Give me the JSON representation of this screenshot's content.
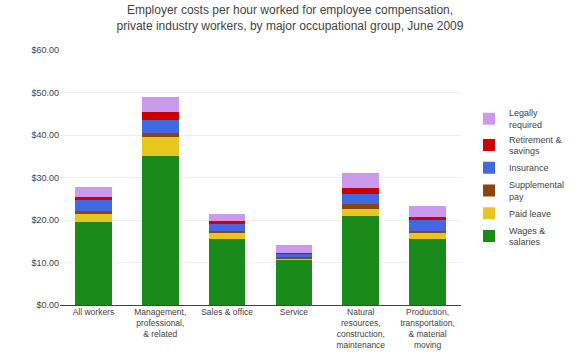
{
  "chart_data": {
    "type": "bar",
    "stacked": true,
    "title": "Employer costs per hour worked for employee compensation,\nprivate industry workers, by major occupational group, June 2009",
    "categories": [
      "All workers",
      "Management,\nprofessional,\n& related",
      "Sales & office",
      "Service",
      "Natural\nresources,\nconstruction,\nmaintenance",
      "Production,\ntransportation,\n& material\nmoving"
    ],
    "series": [
      {
        "name": "Wages &\nsalaries",
        "color": "#1a8a1a",
        "values": [
          19.5,
          35.0,
          15.5,
          10.5,
          21.0,
          15.5
        ]
      },
      {
        "name": "Paid leave",
        "color": "#e8c620",
        "values": [
          1.9,
          4.5,
          1.5,
          0.5,
          1.5,
          1.5
        ]
      },
      {
        "name": "Supplemental\npay",
        "color": "#8b4513",
        "values": [
          0.7,
          1.0,
          0.5,
          0.2,
          1.2,
          0.5
        ]
      },
      {
        "name": "Insurance",
        "color": "#4169e1",
        "values": [
          2.5,
          3.0,
          1.5,
          0.8,
          2.5,
          2.5
        ]
      },
      {
        "name": "Retirement &\nsavings",
        "color": "#cc0000",
        "values": [
          0.8,
          2.0,
          0.7,
          0.3,
          1.3,
          0.8
        ]
      },
      {
        "name": "Legally\nrequired",
        "color": "#cc99ee",
        "values": [
          2.4,
          3.5,
          1.6,
          1.8,
          3.5,
          2.5
        ]
      }
    ],
    "ylim": [
      0,
      60
    ],
    "yticks": [
      {
        "value": 0,
        "label": "$0.00"
      },
      {
        "value": 10,
        "label": "$10.00"
      },
      {
        "value": 20,
        "label": "$20.00"
      },
      {
        "value": 30,
        "label": "$30.00"
      },
      {
        "value": 40,
        "label": "$40.00"
      },
      {
        "value": 50,
        "label": "$50.00"
      },
      {
        "value": 60,
        "label": "$60.00"
      }
    ],
    "grid": true,
    "legend": "right"
  }
}
